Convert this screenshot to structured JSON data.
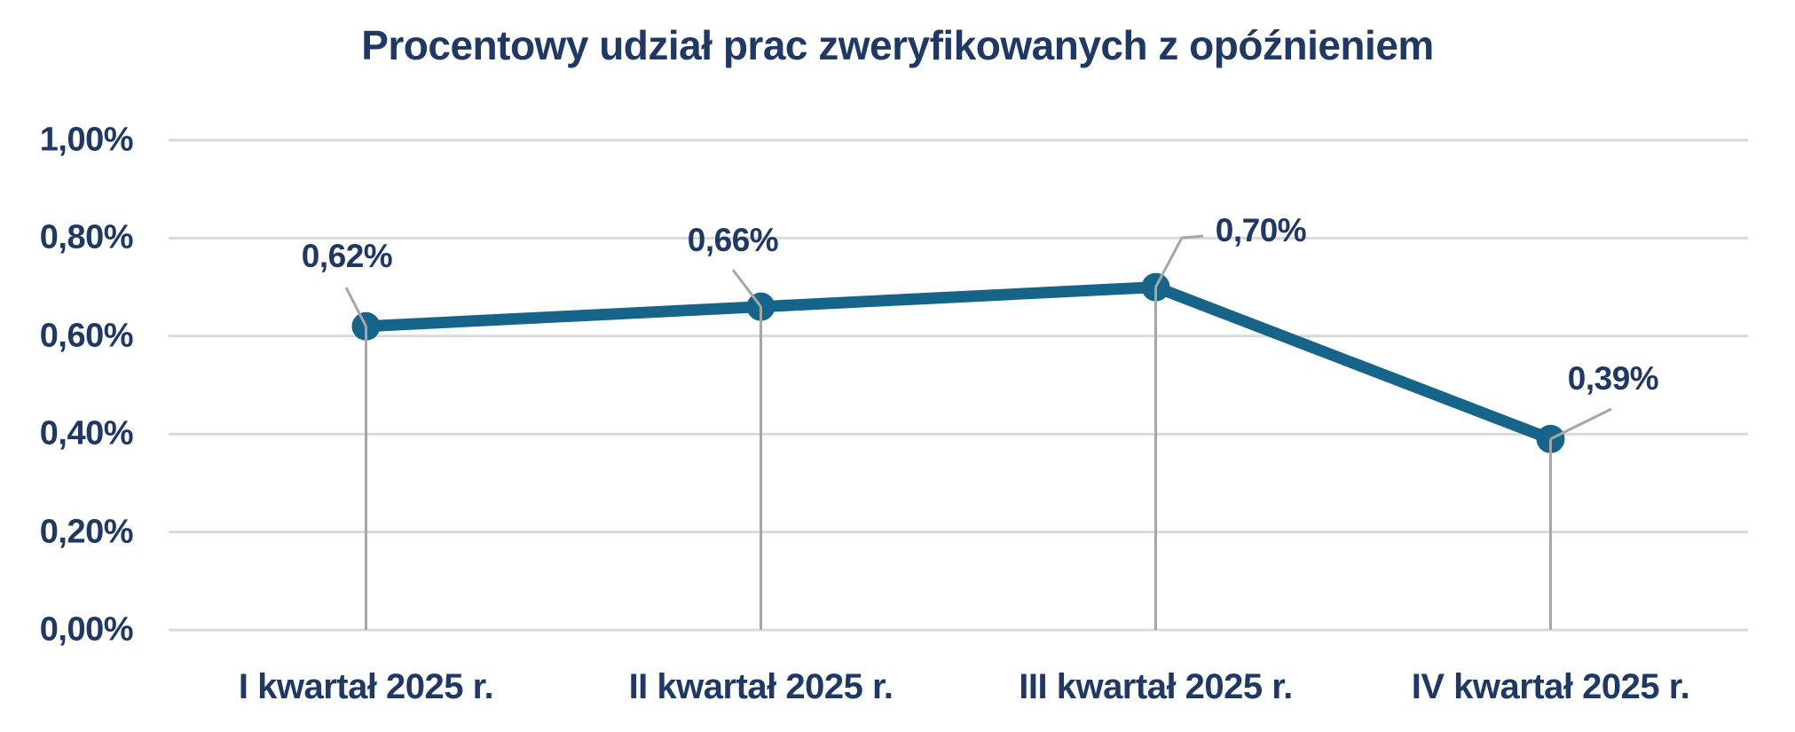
{
  "chart_data": {
    "type": "line",
    "title": "Procentowy udział prac zweryfikowanych z opóźnieniem",
    "categories": [
      "I kwartał 2025 r.",
      "II kwartał 2025 r.",
      "III kwartał 2025 r.",
      "IV kwartał 2025 r."
    ],
    "values": [
      0.62,
      0.66,
      0.7,
      0.39
    ],
    "data_labels": [
      "0,62%",
      "0,66%",
      "0,70%",
      "0,39%"
    ],
    "y_ticks": [
      "0,00%",
      "0,20%",
      "0,40%",
      "0,60%",
      "0,80%",
      "1,00%"
    ],
    "y_tick_values": [
      0,
      0.2,
      0.4,
      0.6,
      0.8,
      1.0
    ],
    "ylim": [
      0,
      1.0
    ],
    "xlabel": "",
    "ylabel": "",
    "grid": true,
    "legend": "none",
    "marker": "circle",
    "colors": {
      "line": "#17648A",
      "marker": "#17648A",
      "title_text": "#1F3864",
      "axis_text": "#1F3864",
      "data_label_text": "#1F3864",
      "gridline": "#D9D9D9",
      "dropline": "#A6A6A6",
      "leader_line": "#A6A6A6",
      "background": "#FFFFFF"
    }
  }
}
